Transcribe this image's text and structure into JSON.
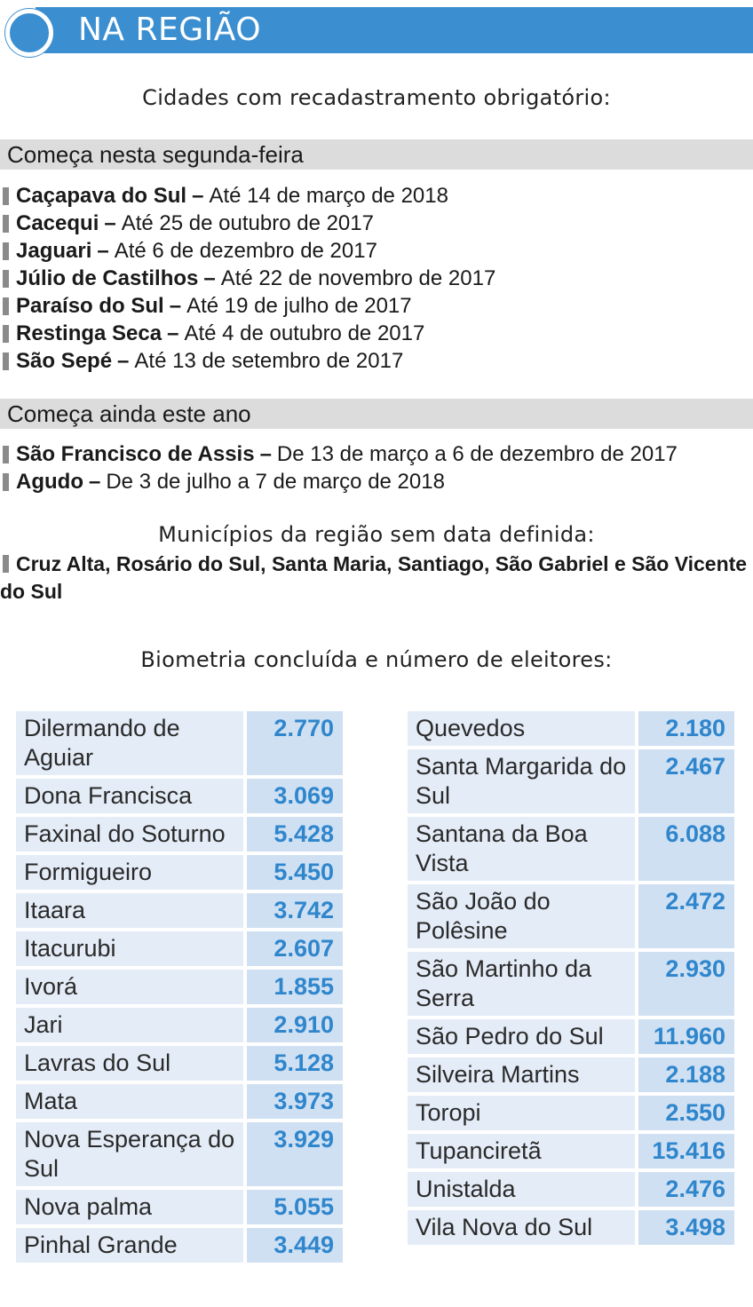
{
  "header": {
    "title": "NA REGIÃO"
  },
  "caption_mandatory": "Cidades com recadastramento obrigatório:",
  "section_monday": {
    "heading": "Começa nesta segunda-feira",
    "items": [
      {
        "city": "Caçapava do Sul",
        "date": "Até 14 de março de 2018"
      },
      {
        "city": "Cacequi",
        "date": "Até 25 de outubro de 2017"
      },
      {
        "city": "Jaguari",
        "date": "Até 6 de dezembro de 2017"
      },
      {
        "city": "Júlio de Castilhos",
        "date": "Até 22 de novembro de 2017"
      },
      {
        "city": "Paraíso do Sul",
        "date": "Até 19 de julho de 2017"
      },
      {
        "city": "Restinga Seca",
        "date": "Até 4 de outubro de 2017"
      },
      {
        "city": "São Sepé",
        "date": "Até 13 de setembro de 2017"
      }
    ]
  },
  "section_this_year": {
    "heading": "Começa ainda este ano",
    "items": [
      {
        "city": "São Francisco de Assis",
        "date": "De 13 de março a 6 de dezembro de 2017"
      },
      {
        "city": "Agudo",
        "date": "De 3 de julho a 7 de março de 2018"
      }
    ]
  },
  "caption_undefined": "Municípios da região sem data definida:",
  "undefined_cities": "Cruz Alta, Rosário do Sul, Santa Maria, Santiago, São Gabriel e São Vicente do Sul",
  "caption_biometry": "Biometria concluída e número de eleitores:",
  "dash": "–",
  "voters_left": [
    {
      "name": "Dilermando de Aguiar",
      "voters": "2.770"
    },
    {
      "name": "Dona Francisca",
      "voters": "3.069"
    },
    {
      "name": "Faxinal do Soturno",
      "voters": "5.428"
    },
    {
      "name": "Formigueiro",
      "voters": "5.450"
    },
    {
      "name": "Itaara",
      "voters": "3.742"
    },
    {
      "name": "Itacurubi",
      "voters": "2.607"
    },
    {
      "name": "Ivorá",
      "voters": "1.855"
    },
    {
      "name": "Jari",
      "voters": "2.910"
    },
    {
      "name": "Lavras do Sul",
      "voters": "5.128"
    },
    {
      "name": "Mata",
      "voters": "3.973"
    },
    {
      "name": "Nova Esperança do Sul",
      "voters": "3.929"
    },
    {
      "name": "Nova palma",
      "voters": "5.055"
    },
    {
      "name": "Pinhal Grande",
      "voters": "3.449"
    }
  ],
  "voters_right": [
    {
      "name": "Quevedos",
      "voters": "2.180"
    },
    {
      "name": "Santa Margarida do Sul",
      "voters": "2.467"
    },
    {
      "name": "Santana da Boa Vista",
      "voters": "6.088"
    },
    {
      "name": "São João do Polêsine",
      "voters": "2.472"
    },
    {
      "name": "São Martinho da Serra",
      "voters": "2.930"
    },
    {
      "name": "São Pedro do Sul",
      "voters": "11.960"
    },
    {
      "name": "Silveira Martins",
      "voters": "2.188"
    },
    {
      "name": "Toropi",
      "voters": "2.550"
    },
    {
      "name": "Tupanciretã",
      "voters": "15.416"
    },
    {
      "name": "Unistalda",
      "voters": "2.476"
    },
    {
      "name": "Vila Nova do Sul",
      "voters": "3.498"
    }
  ],
  "colors": {
    "banner": "#3b8fd0",
    "number_text": "#2f86cc",
    "name_cell": "#e4ecf7",
    "number_cell": "#cfe0f3",
    "section_bg": "#dcdcdc"
  }
}
